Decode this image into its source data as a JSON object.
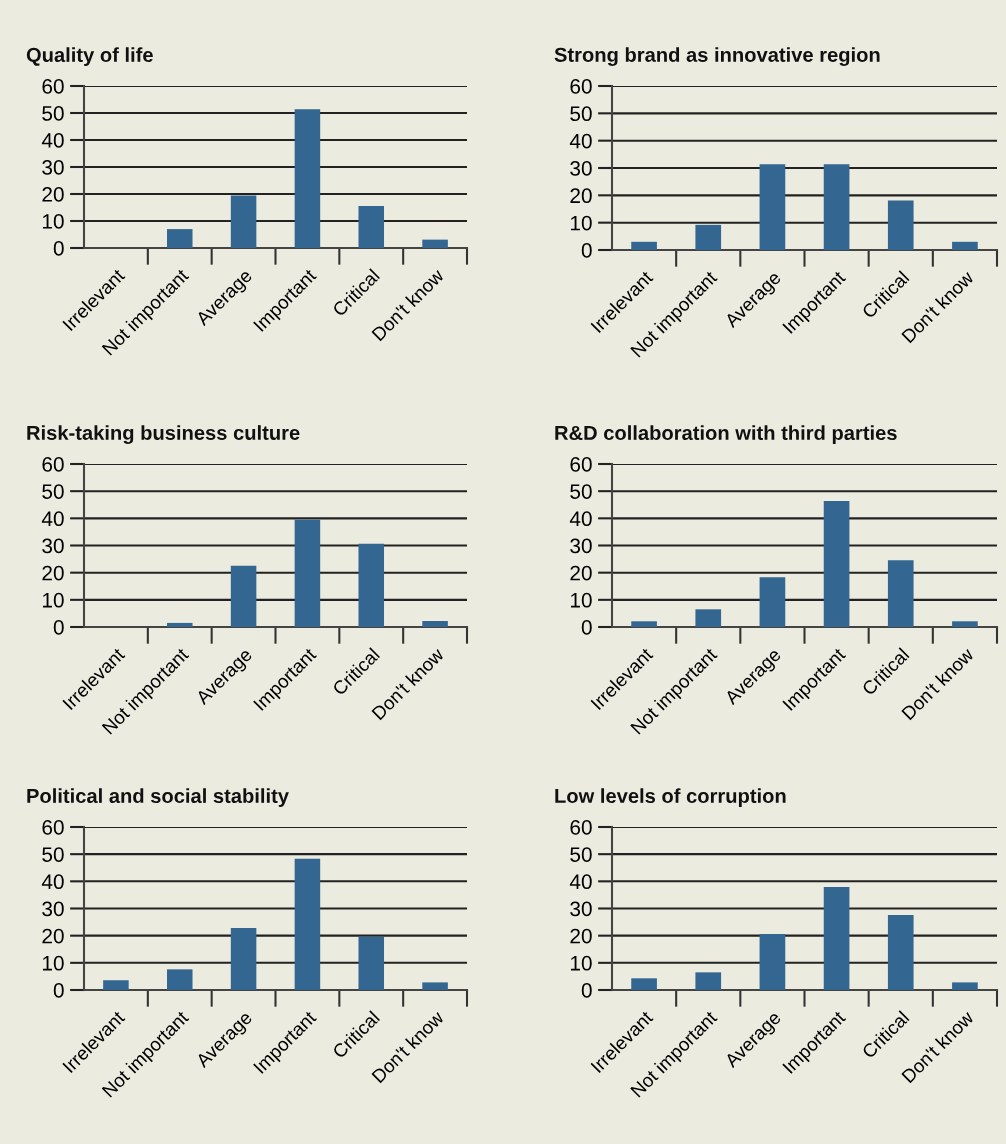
{
  "chart_data": [
    {
      "type": "bar",
      "title": "Quality of life",
      "categories": [
        "Irrelevant",
        "Not important",
        "Average",
        "Important",
        "Critical",
        "Don't know"
      ],
      "values": [
        0,
        7,
        19.4,
        51.4,
        15.6,
        3.1
      ],
      "color": "#336690",
      "ylim": [
        0,
        60
      ],
      "yticks": [
        0,
        10,
        20,
        30,
        40,
        50,
        60
      ],
      "grid": "y"
    },
    {
      "type": "bar",
      "title": "Strong brand as innovative region",
      "categories": [
        "Irrelevant",
        "Not important",
        "Average",
        "Important",
        "Critical",
        "Don't know"
      ],
      "values": [
        3,
        9.2,
        31.4,
        31.4,
        18.1,
        3
      ],
      "color": "#336690",
      "ylim": [
        0,
        60
      ],
      "yticks": [
        0,
        10,
        20,
        30,
        40,
        50,
        60
      ],
      "grid": "y"
    },
    {
      "type": "bar",
      "title": "Risk-taking business culture",
      "categories": [
        "Irrelevant",
        "Not important",
        "Average",
        "Important",
        "Critical",
        "Don't know"
      ],
      "values": [
        0,
        1.5,
        22.5,
        39.5,
        30.6,
        2.2
      ],
      "color": "#336690",
      "ylim": [
        0,
        60
      ],
      "yticks": [
        0,
        10,
        20,
        30,
        40,
        50,
        60
      ],
      "grid": "y"
    },
    {
      "type": "bar",
      "title": "R&D collaboration with third parties",
      "categories": [
        "Irrelevant",
        "Not important",
        "Average",
        "Important",
        "Critical",
        "Don't know"
      ],
      "values": [
        2.1,
        6.5,
        18.3,
        46.4,
        24.6,
        2.1
      ],
      "color": "#336690",
      "ylim": [
        0,
        60
      ],
      "yticks": [
        0,
        10,
        20,
        30,
        40,
        50,
        60
      ],
      "grid": "y"
    },
    {
      "type": "bar",
      "title": "Political and social stability",
      "categories": [
        "Irrelevant",
        "Not important",
        "Average",
        "Important",
        "Critical",
        "Don't know"
      ],
      "values": [
        3.6,
        7.6,
        22.8,
        48.3,
        19.6,
        2.8
      ],
      "color": "#336690",
      "ylim": [
        0,
        60
      ],
      "yticks": [
        0,
        10,
        20,
        30,
        40,
        50,
        60
      ],
      "grid": "y"
    },
    {
      "type": "bar",
      "title": "Low levels of corruption",
      "categories": [
        "Irrelevant",
        "Not important",
        "Average",
        "Important",
        "Critical",
        "Don't know"
      ],
      "values": [
        4.3,
        6.5,
        20.6,
        37.9,
        27.6,
        2.8
      ],
      "color": "#336690",
      "ylim": [
        0,
        60
      ],
      "yticks": [
        0,
        10,
        20,
        30,
        40,
        50,
        60
      ],
      "grid": "y"
    }
  ]
}
